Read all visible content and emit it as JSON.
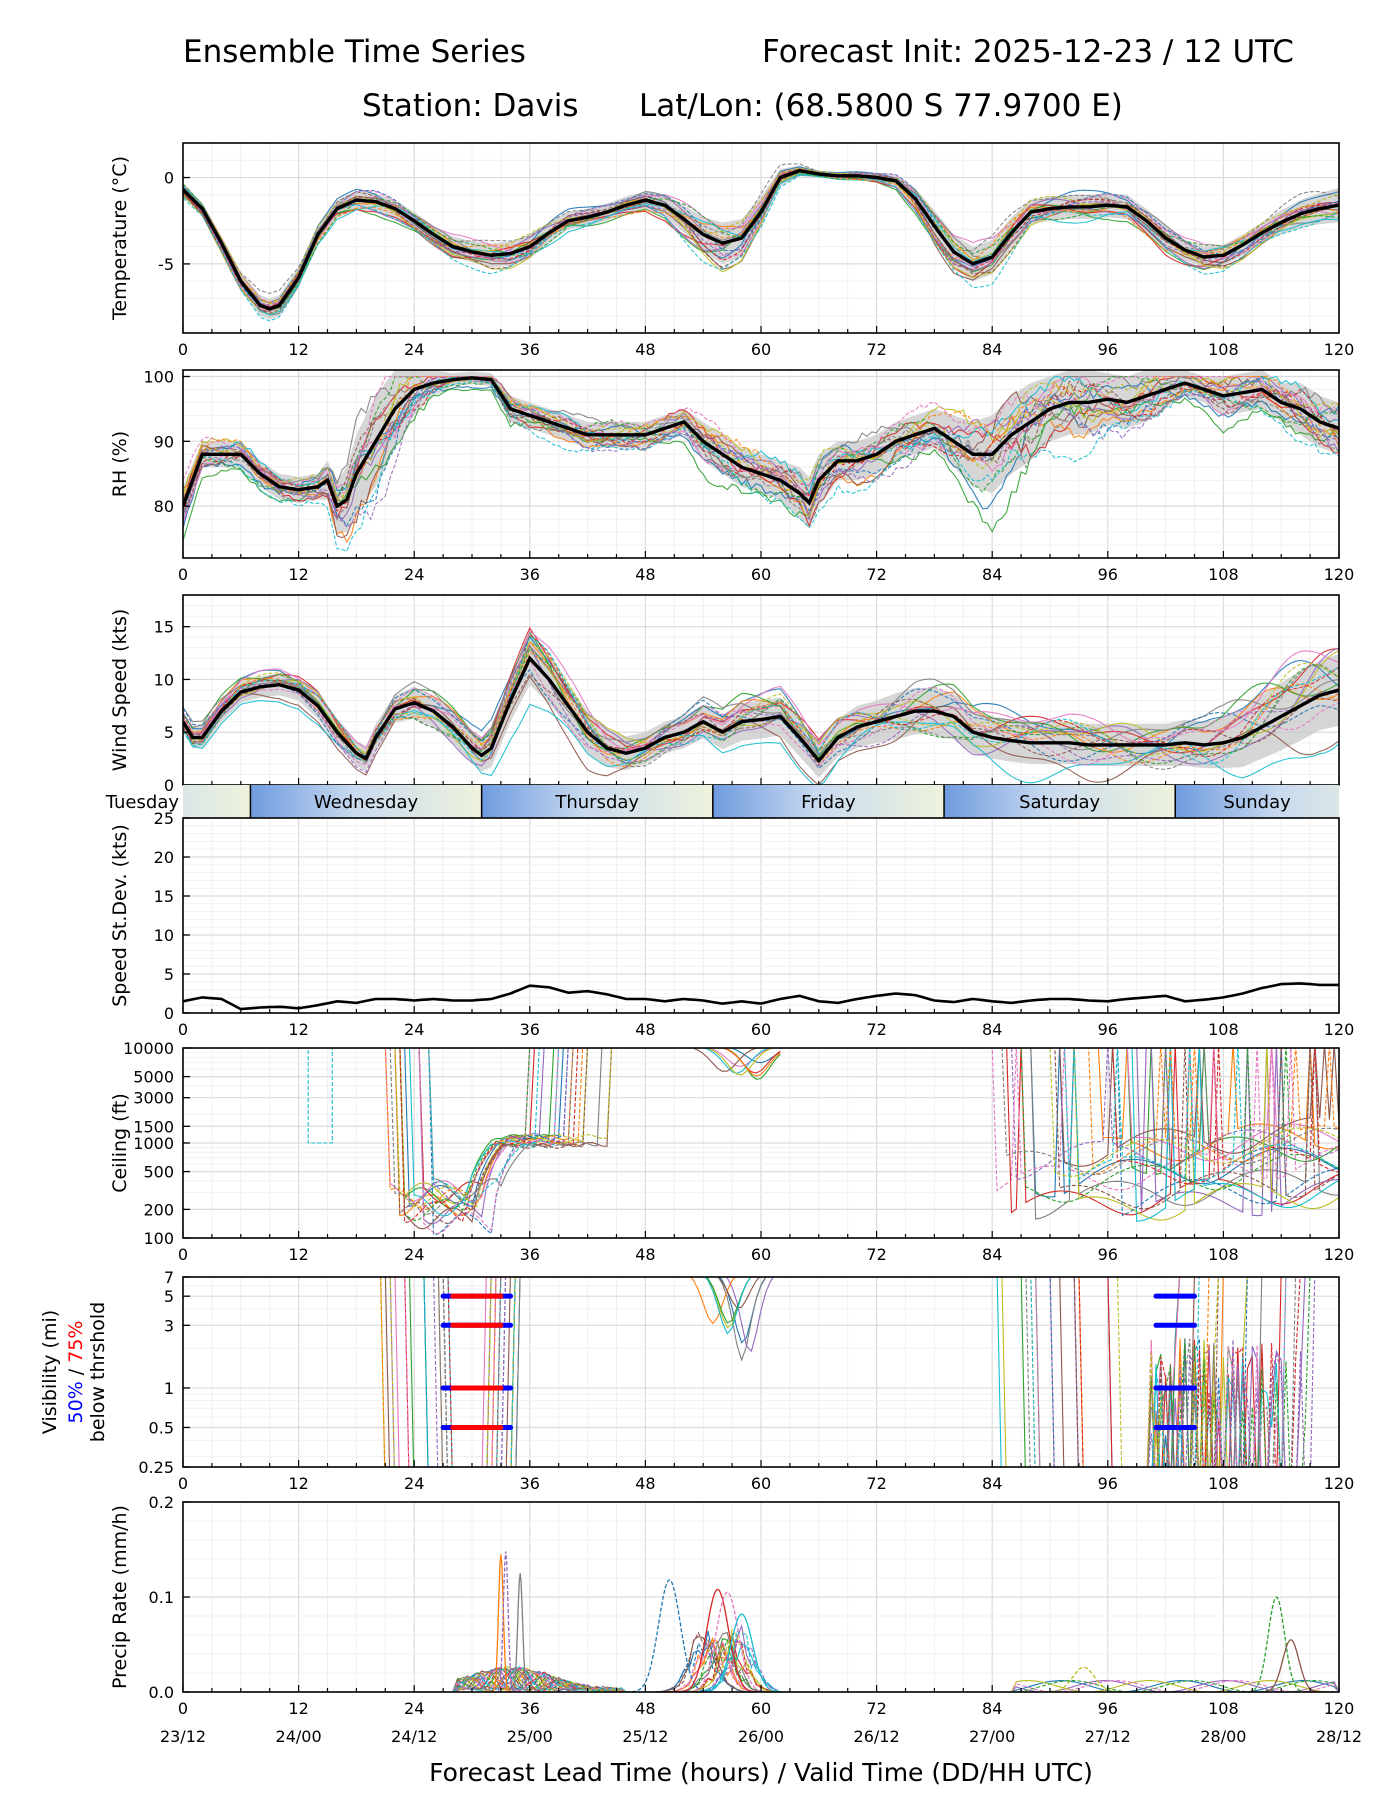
{
  "header": {
    "title": "Ensemble Time Series",
    "init": "Forecast Init: 2025-12-23 / 12 UTC",
    "station": "Station: Davis",
    "latlon": "Lat/Lon: (68.5800 S 77.9700 E)"
  },
  "xaxis": {
    "ticks": [
      0,
      12,
      24,
      36,
      48,
      60,
      72,
      84,
      96,
      108,
      120
    ],
    "labels": [
      "0",
      "12",
      "24",
      "36",
      "48",
      "60",
      "72",
      "84",
      "96",
      "108",
      "120"
    ],
    "valid_times": [
      "23/12",
      "24/00",
      "24/12",
      "25/00",
      "25/12",
      "26/00",
      "26/12",
      "27/00",
      "27/12",
      "28/00",
      "28/12"
    ],
    "xlabel": "Forecast Lead Time (hours) / Valid Time (DD/HH UTC)"
  },
  "colors": {
    "members": [
      "#1f77b4",
      "#ff7f0e",
      "#2ca02c",
      "#d62728",
      "#9467bd",
      "#8c564b",
      "#e377c2",
      "#7f7f7f",
      "#bcbd22",
      "#17becf"
    ],
    "mean": "#000000",
    "band": "#c8c8c8",
    "p50": "#0000ff",
    "p75": "#ff0000"
  },
  "days": {
    "names": [
      "Tuesday",
      "Wednesday",
      "Thursday",
      "Friday",
      "Saturday",
      "Sunday"
    ],
    "boundaries": [
      7,
      31,
      55,
      79,
      103
    ]
  },
  "visibility": {
    "label_main": "Visibility (mi)",
    "label_p50": "50%",
    "label_sep": " / ",
    "label_p75": "75%",
    "label_sub": "below thrshold"
  },
  "chart_data": [
    {
      "type": "line",
      "id": "temperature",
      "ylabel": "Temperature (°C)",
      "ylim": [
        -9,
        2
      ],
      "yticks": [
        0,
        -5
      ],
      "ytick_labels": [
        "0",
        "-5"
      ],
      "x": [
        0,
        2,
        4,
        6,
        8,
        9,
        10,
        12,
        14,
        16,
        18,
        20,
        22,
        24,
        26,
        28,
        30,
        32,
        34,
        36,
        38,
        40,
        42,
        44,
        46,
        48,
        50,
        52,
        54,
        56,
        58,
        60,
        62,
        64,
        66,
        68,
        70,
        72,
        74,
        76,
        78,
        80,
        82,
        84,
        86,
        88,
        90,
        92,
        94,
        96,
        98,
        100,
        102,
        104,
        106,
        108,
        110,
        112,
        114,
        116,
        118,
        120
      ],
      "mean": [
        -0.7,
        -1.8,
        -3.8,
        -6.0,
        -7.4,
        -7.6,
        -7.4,
        -5.8,
        -3.3,
        -1.8,
        -1.3,
        -1.4,
        -1.8,
        -2.5,
        -3.3,
        -4.0,
        -4.3,
        -4.5,
        -4.4,
        -4.0,
        -3.2,
        -2.5,
        -2.3,
        -2.0,
        -1.6,
        -1.3,
        -1.6,
        -2.4,
        -3.3,
        -3.8,
        -3.5,
        -2.0,
        0.0,
        0.4,
        0.2,
        0.1,
        0.1,
        0.0,
        -0.2,
        -1.2,
        -2.8,
        -4.3,
        -5.0,
        -4.6,
        -3.2,
        -2.0,
        -1.8,
        -1.7,
        -1.7,
        -1.6,
        -1.7,
        -2.5,
        -3.5,
        -4.2,
        -4.6,
        -4.5,
        -3.9,
        -3.2,
        -2.6,
        -2.1,
        -1.8,
        -1.6
      ],
      "spread": [
        0.3,
        0.3,
        0.4,
        0.5,
        0.6,
        0.6,
        0.6,
        0.6,
        0.6,
        0.5,
        0.5,
        0.5,
        0.5,
        0.5,
        0.5,
        0.6,
        0.6,
        0.7,
        0.7,
        0.7,
        0.6,
        0.5,
        0.5,
        0.5,
        0.5,
        0.5,
        0.6,
        0.8,
        1.0,
        1.2,
        1.1,
        0.9,
        0.5,
        0.3,
        0.2,
        0.2,
        0.2,
        0.2,
        0.3,
        0.6,
        0.9,
        1.0,
        1.0,
        1.0,
        0.9,
        0.7,
        0.7,
        0.7,
        0.7,
        0.7,
        0.7,
        0.7,
        0.7,
        0.6,
        0.6,
        0.6,
        0.6,
        0.6,
        0.7,
        0.8,
        0.9,
        1.0
      ]
    },
    {
      "type": "line",
      "id": "rh",
      "ylabel": "RH (%)",
      "ylim": [
        72,
        101
      ],
      "yticks": [
        80,
        90,
        100
      ],
      "ytick_labels": [
        "80",
        "90",
        "100"
      ],
      "x": [
        0,
        2,
        4,
        6,
        8,
        10,
        12,
        14,
        15,
        16,
        17,
        18,
        20,
        22,
        24,
        26,
        28,
        30,
        32,
        34,
        36,
        38,
        40,
        42,
        44,
        46,
        48,
        50,
        52,
        54,
        56,
        58,
        60,
        62,
        64,
        65,
        66,
        68,
        70,
        72,
        74,
        76,
        78,
        80,
        82,
        84,
        86,
        88,
        90,
        92,
        94,
        96,
        98,
        100,
        102,
        104,
        106,
        108,
        110,
        112,
        114,
        116,
        118,
        120
      ],
      "mean": [
        80,
        88,
        88,
        88,
        85,
        83,
        82.5,
        83,
        84,
        80,
        81,
        85,
        90,
        95,
        98,
        99,
        99.5,
        99.8,
        99.5,
        95,
        94,
        93,
        92,
        91,
        91,
        91,
        91,
        92,
        93,
        90,
        88,
        86,
        85,
        84,
        82,
        80.5,
        84,
        87,
        87,
        88,
        90,
        91,
        92,
        90,
        88,
        88,
        91,
        93,
        95,
        96,
        96,
        96.5,
        96,
        97,
        98,
        99,
        98,
        97,
        97.5,
        98,
        96,
        95,
        93,
        92
      ],
      "spread": [
        3,
        2,
        2,
        2,
        2,
        2,
        2,
        2,
        3,
        4,
        5,
        6,
        7,
        6,
        4,
        2,
        1,
        1,
        1,
        2,
        2,
        2,
        2,
        2,
        2,
        2,
        2,
        2,
        2,
        3,
        3,
        3,
        3,
        3,
        4,
        4,
        4,
        3,
        3,
        3,
        3,
        3,
        3,
        4,
        5,
        6,
        6,
        6,
        5,
        5,
        5,
        4,
        4,
        4,
        3,
        2,
        2,
        3,
        3,
        3,
        3,
        4,
        4,
        4
      ]
    },
    {
      "type": "line",
      "id": "wind",
      "ylabel": "Wind Speed (kts)",
      "ylim": [
        0,
        18
      ],
      "yticks": [
        0,
        5,
        10,
        15
      ],
      "ytick_labels": [
        "0",
        "5",
        "10",
        "15"
      ],
      "x": [
        0,
        1,
        2,
        4,
        6,
        8,
        10,
        12,
        14,
        16,
        18,
        19,
        20,
        22,
        24,
        26,
        28,
        30,
        31,
        32,
        34,
        36,
        38,
        40,
        42,
        44,
        46,
        48,
        50,
        52,
        54,
        55,
        56,
        58,
        60,
        62,
        64,
        66,
        68,
        70,
        72,
        74,
        76,
        78,
        80,
        82,
        84,
        86,
        88,
        90,
        92,
        94,
        96,
        98,
        100,
        102,
        104,
        106,
        108,
        110,
        112,
        114,
        116,
        118,
        120
      ],
      "mean": [
        6,
        4.5,
        4.5,
        7,
        8.8,
        9.3,
        9.5,
        9,
        7.5,
        5,
        3,
        2.5,
        4.5,
        7.2,
        7.8,
        7,
        5.5,
        3.5,
        2.8,
        3.5,
        8,
        12,
        10,
        7.5,
        5,
        3.5,
        3,
        3.5,
        4.5,
        5,
        6,
        5.5,
        5,
        6,
        6.2,
        6.5,
        4.5,
        2.3,
        4.5,
        5.5,
        6,
        6.5,
        7,
        7,
        6.5,
        5,
        4.5,
        4.2,
        4,
        4,
        4,
        3.8,
        3.8,
        3.8,
        3.8,
        3.8,
        4,
        3.8,
        4,
        4.5,
        5.5,
        6.5,
        7.5,
        8.5,
        9
      ],
      "spread": [
        1,
        1,
        1,
        1,
        1,
        1,
        1,
        1,
        1.2,
        1.3,
        1.2,
        1.2,
        1.3,
        1.3,
        1.5,
        1.5,
        1.5,
        1.5,
        1.5,
        1.8,
        2,
        2.5,
        2.3,
        2,
        2,
        1.8,
        1.6,
        1.5,
        1.5,
        1.5,
        1.6,
        1.6,
        1.6,
        1.8,
        1.8,
        1.8,
        1.8,
        1.6,
        1.8,
        2,
        2,
        2.2,
        2.2,
        2.2,
        2.2,
        2,
        2,
        2,
        2,
        2,
        2,
        2,
        2,
        2,
        2,
        2,
        2.2,
        2.2,
        2.4,
        2.8,
        3,
        3.2,
        3.3,
        3.3,
        3.4
      ]
    },
    {
      "type": "line",
      "id": "speed_stdev",
      "ylabel": "Speed St.Dev. (kts)",
      "ylim": [
        0,
        25
      ],
      "yticks": [
        0,
        5,
        10,
        15,
        20,
        25
      ],
      "ytick_labels": [
        "0",
        "5",
        "10",
        "15",
        "20",
        "25"
      ],
      "x": [
        0,
        2,
        4,
        6,
        8,
        10,
        12,
        14,
        16,
        18,
        20,
        22,
        24,
        26,
        28,
        30,
        32,
        34,
        36,
        38,
        40,
        42,
        44,
        46,
        48,
        50,
        52,
        54,
        56,
        58,
        60,
        62,
        64,
        66,
        68,
        70,
        72,
        74,
        76,
        78,
        80,
        82,
        84,
        86,
        88,
        90,
        92,
        94,
        96,
        98,
        100,
        102,
        104,
        106,
        108,
        110,
        112,
        114,
        116,
        118,
        120
      ],
      "values": [
        1.5,
        2.0,
        1.8,
        0.5,
        0.7,
        0.8,
        0.6,
        1.0,
        1.5,
        1.3,
        1.8,
        1.8,
        1.6,
        1.8,
        1.6,
        1.6,
        1.8,
        2.5,
        3.5,
        3.3,
        2.6,
        2.8,
        2.4,
        1.8,
        1.8,
        1.5,
        1.8,
        1.6,
        1.2,
        1.5,
        1.2,
        1.8,
        2.2,
        1.5,
        1.3,
        1.8,
        2.2,
        2.5,
        2.3,
        1.6,
        1.4,
        1.8,
        1.5,
        1.3,
        1.6,
        1.8,
        1.8,
        1.6,
        1.5,
        1.8,
        2.0,
        2.2,
        1.5,
        1.7,
        2.0,
        2.5,
        3.2,
        3.7,
        3.8,
        3.6,
        3.6
      ]
    },
    {
      "type": "line",
      "id": "ceiling",
      "ylabel": "Ceiling (ft)",
      "scale": "log",
      "ylim": [
        100,
        10000
      ],
      "yticks": [
        100,
        200,
        500,
        1000,
        1500,
        3000,
        5000,
        10000
      ],
      "ytick_labels": [
        "100",
        "200",
        "500",
        "1000",
        "1500",
        "3000",
        "5000",
        "10000"
      ]
    },
    {
      "type": "line",
      "id": "visibility",
      "scale": "log",
      "ylim": [
        0.25,
        7
      ],
      "yticks": [
        0.25,
        0.5,
        1,
        3,
        5,
        7
      ],
      "ytick_labels": [
        "0.25",
        "0.5",
        "1",
        "3",
        "5",
        "7"
      ],
      "threshold_levels": [
        0.5,
        1,
        3,
        5
      ],
      "p50_segments": [
        [
          27,
          34
        ],
        [
          101,
          105
        ]
      ],
      "p75_segments": [
        [
          28,
          33
        ]
      ]
    },
    {
      "type": "line",
      "id": "precip",
      "ylabel": "Precip Rate (mm/h)",
      "ylim": [
        0,
        0.2
      ],
      "yticks": [
        0,
        0.1,
        0.2
      ],
      "ytick_labels": [
        "0.0",
        "0.1",
        "0.2"
      ],
      "peaks": [
        {
          "x": 33,
          "y": 0.145
        },
        {
          "x": 33.5,
          "y": 0.148
        },
        {
          "x": 35,
          "y": 0.125
        },
        {
          "x": 50.5,
          "y": 0.118
        },
        {
          "x": 55.5,
          "y": 0.108
        },
        {
          "x": 56.5,
          "y": 0.105
        },
        {
          "x": 58,
          "y": 0.082
        },
        {
          "x": 113.5,
          "y": 0.1
        },
        {
          "x": 115,
          "y": 0.055
        },
        {
          "x": 93.5,
          "y": 0.026
        }
      ]
    }
  ]
}
